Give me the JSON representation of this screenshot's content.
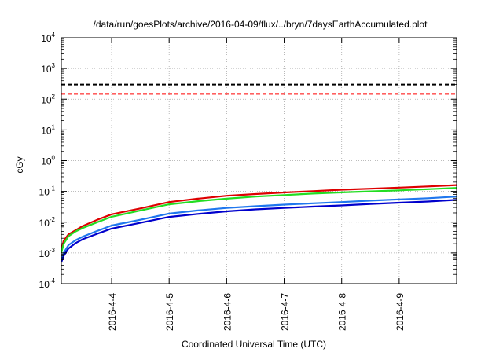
{
  "chart_data": {
    "type": "line",
    "title": "/data/run/goesPlots/archive/2016-04-09/flux/../bryn/7daysEarthAccumulated.plot",
    "xlabel": "Coordinated Universal Time (UTC)",
    "ylabel": "cGy",
    "yscale": "log",
    "ylim": [
      0.0001,
      10000
    ],
    "xlim": [
      "2016-04-03 03:00",
      "2016-04-09 23:59"
    ],
    "y_ticks": [
      {
        "base": "10",
        "exp": "-4"
      },
      {
        "base": "10",
        "exp": "-3"
      },
      {
        "base": "10",
        "exp": "-2"
      },
      {
        "base": "10",
        "exp": "-1"
      },
      {
        "base": "10",
        "exp": "0"
      },
      {
        "base": "10",
        "exp": "1"
      },
      {
        "base": "10",
        "exp": "2"
      },
      {
        "base": "10",
        "exp": "3"
      },
      {
        "base": "10",
        "exp": "4"
      }
    ],
    "x_ticks": [
      "2016-4-4",
      "2016-4-5",
      "2016-4-6",
      "2016-4-7",
      "2016-4-8",
      "2016-4-9"
    ],
    "grid": true,
    "x": [
      "2016-04-03 03:00",
      "2016-04-03 04:00",
      "2016-04-03 06:00",
      "2016-04-03 09:00",
      "2016-04-03 12:00",
      "2016-04-03 18:00",
      "2016-04-04 00:00",
      "2016-04-04 12:00",
      "2016-04-05 00:00",
      "2016-04-05 12:00",
      "2016-04-06 00:00",
      "2016-04-06 12:00",
      "2016-04-07 00:00",
      "2016-04-07 12:00",
      "2016-04-08 00:00",
      "2016-04-08 12:00",
      "2016-04-09 00:00",
      "2016-04-09 12:00",
      "2016-04-09 23:59"
    ],
    "series": [
      {
        "color": "#dd0000",
        "values": [
          0.0012,
          0.0025,
          0.004,
          0.0055,
          0.0075,
          0.012,
          0.018,
          0.028,
          0.045,
          0.058,
          0.072,
          0.082,
          0.092,
          0.102,
          0.113,
          0.122,
          0.133,
          0.145,
          0.16
        ]
      },
      {
        "color": "#22dd22",
        "values": [
          0.001,
          0.002,
          0.0035,
          0.005,
          0.0065,
          0.01,
          0.015,
          0.024,
          0.038,
          0.048,
          0.058,
          0.068,
          0.076,
          0.085,
          0.093,
          0.1,
          0.108,
          0.118,
          0.13
        ]
      },
      {
        "color": "#1f77ee",
        "values": [
          0.0006,
          0.001,
          0.0018,
          0.0026,
          0.0034,
          0.0052,
          0.0078,
          0.012,
          0.019,
          0.024,
          0.029,
          0.033,
          0.037,
          0.041,
          0.045,
          0.05,
          0.055,
          0.06,
          0.068
        ]
      },
      {
        "color": "#0000cc",
        "values": [
          0.0005,
          0.0008,
          0.0014,
          0.0021,
          0.0028,
          0.0042,
          0.0062,
          0.0095,
          0.0148,
          0.0185,
          0.0225,
          0.026,
          0.029,
          0.032,
          0.035,
          0.039,
          0.043,
          0.047,
          0.053
        ]
      }
    ],
    "thresholds": [
      {
        "value": 300,
        "color": "#000000",
        "style": "dashed"
      },
      {
        "value": 150,
        "color": "#ff0000",
        "style": "dashed"
      }
    ]
  }
}
